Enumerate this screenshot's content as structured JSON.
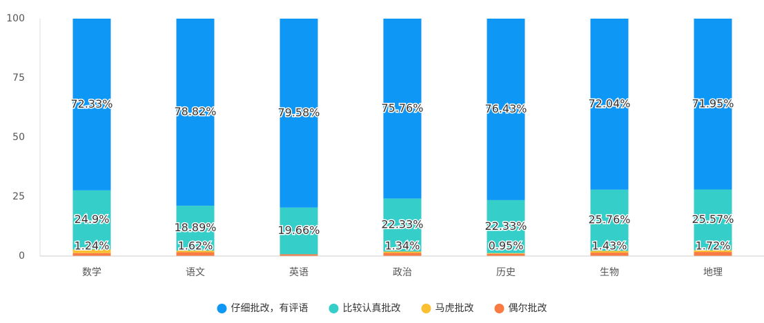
{
  "chart_data": {
    "type": "stacked_bar",
    "categories": [
      "数学",
      "语文",
      "英语",
      "政治",
      "历史",
      "生物",
      "地理"
    ],
    "series": [
      {
        "name": "偶尔批改",
        "color": "#f97a42",
        "values": [
          1.24,
          1.62,
          0.76,
          1.34,
          0.95,
          1.43,
          1.72
        ],
        "value_labels": [
          "1.24%",
          "1.62%",
          null,
          "1.34%",
          "0.95%",
          "1.43%",
          "1.72%"
        ]
      },
      {
        "name": "马虎批改",
        "color": "#fbbf32",
        "values": [
          1.53,
          0.67,
          0,
          0.57,
          0.29,
          0.77,
          0.76
        ],
        "value_labels": [
          null,
          null,
          null,
          null,
          null,
          null,
          null
        ]
      },
      {
        "name": "比较认真批改",
        "color": "#36cec8",
        "values": [
          24.9,
          18.89,
          19.66,
          22.33,
          22.33,
          25.76,
          25.57
        ],
        "value_labels": [
          "24.9%",
          "18.89%",
          "19.66%",
          "22.33%",
          "22.33%",
          "25.76%",
          "25.57%"
        ]
      },
      {
        "name": "仔细批改，有评语",
        "color": "#0f97f5",
        "values": [
          72.33,
          78.82,
          79.58,
          75.76,
          76.43,
          72.04,
          71.95
        ],
        "value_labels": [
          "72.33%",
          "78.82%",
          "79.58%",
          "75.76%",
          "76.43%",
          "72.04%",
          "71.95%"
        ]
      }
    ],
    "legend_order": [
      3,
      2,
      1,
      0
    ],
    "ylim": [
      0,
      100
    ],
    "yticks": [
      0,
      25,
      50,
      75,
      100
    ]
  }
}
